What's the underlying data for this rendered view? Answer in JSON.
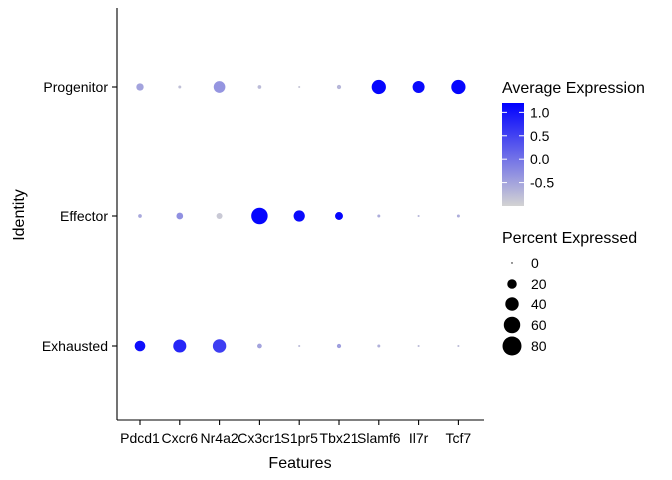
{
  "chart_data": {
    "type": "dotplot",
    "xlabel": "Features",
    "ylabel": "Identity",
    "features": [
      "Pdcd1",
      "Cxcr6",
      "Nr4a2",
      "Cx3cr1",
      "S1pr5",
      "Tbx21",
      "Slamf6",
      "Il7r",
      "Tcf7"
    ],
    "identities": [
      "Exhausted",
      "Effector",
      "Progenitor"
    ],
    "series": [
      {
        "identity": "Progenitor",
        "pct": [
          12,
          2,
          30,
          3,
          1,
          4,
          45,
          32,
          45
        ],
        "avg_exp": [
          -0.5,
          -0.8,
          -0.35,
          -0.75,
          -0.85,
          -0.7,
          1.15,
          1.1,
          1.15
        ]
      },
      {
        "identity": "Effector",
        "pct": [
          3,
          10,
          8,
          60,
          28,
          14,
          2,
          1,
          2
        ],
        "avg_exp": [
          -0.55,
          -0.3,
          -0.9,
          1.15,
          1.1,
          1.15,
          -0.6,
          -0.7,
          -0.6
        ]
      },
      {
        "identity": "Exhausted",
        "pct": [
          25,
          38,
          40,
          5,
          1,
          4,
          2,
          1,
          1
        ],
        "avg_exp": [
          1.05,
          0.8,
          0.55,
          -0.5,
          -0.75,
          -0.45,
          -0.65,
          -0.75,
          -0.75
        ]
      }
    ],
    "color_legend": {
      "title": "Average Expression",
      "ticks": [
        "1.0",
        "0.5",
        "0.0",
        "-0.5"
      ],
      "tick_values": [
        1.0,
        0.5,
        0.0,
        -0.5
      ],
      "range": [
        -1.0,
        1.2
      ],
      "low_color": "#d3d3d3",
      "high_color": "#0000ff"
    },
    "size_legend": {
      "title": "Percent Expressed",
      "labels": [
        "0",
        "20",
        "40",
        "60",
        "80"
      ],
      "values": [
        0,
        20,
        40,
        60,
        80
      ]
    }
  }
}
